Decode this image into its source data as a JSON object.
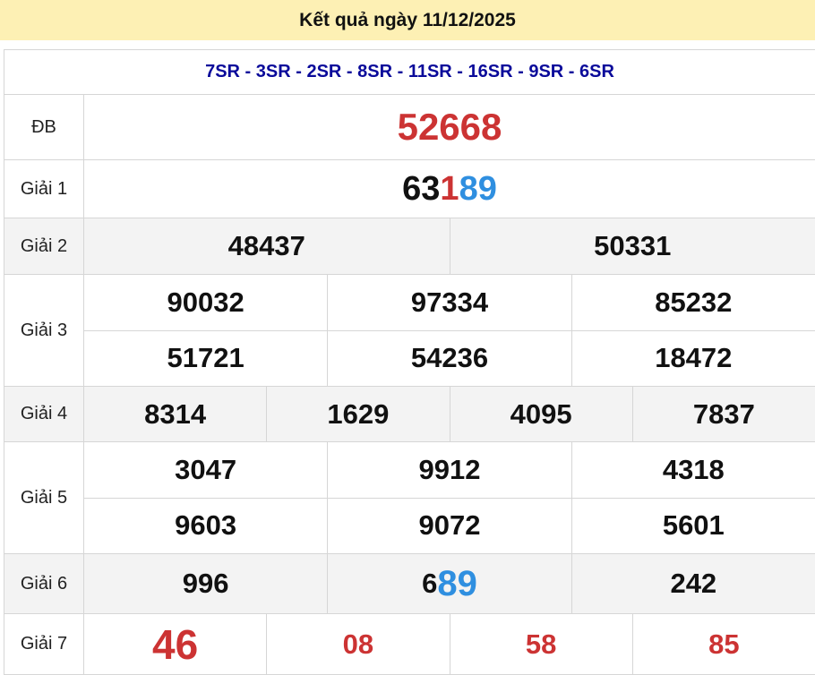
{
  "title": "Kết quả ngày 11/12/2025",
  "codes": "7SR - 3SR - 2SR - 8SR - 11SR - 16SR - 9SR - 6SR",
  "colors": {
    "red": "#cc3333",
    "blue": "#2f8fe0",
    "header_bg": "#fdf0b4",
    "codes": "#0a0a9a"
  },
  "prizes": [
    {
      "label": "ĐB",
      "size": 42,
      "rows": [
        [
          [
            {
              "t": "52668",
              "c": "red"
            }
          ]
        ]
      ]
    },
    {
      "label": "Giải 1",
      "size": 38,
      "rows": [
        [
          [
            {
              "t": "63",
              "c": "blk"
            },
            {
              "t": "1",
              "c": "red"
            },
            {
              "t": "89",
              "c": "blue"
            }
          ]
        ]
      ]
    },
    {
      "label": "Giải 2",
      "alt": true,
      "rows": [
        [
          [
            {
              "t": "48437"
            }
          ],
          [
            {
              "t": "50331"
            }
          ]
        ]
      ]
    },
    {
      "label": "Giải 3",
      "rows": [
        [
          [
            {
              "t": "90032"
            }
          ],
          [
            {
              "t": "97334"
            }
          ],
          [
            {
              "t": "85232"
            }
          ]
        ],
        [
          [
            {
              "t": "51721"
            }
          ],
          [
            {
              "t": "54236"
            }
          ],
          [
            {
              "t": "18472"
            }
          ]
        ]
      ]
    },
    {
      "label": "Giải 4",
      "alt": true,
      "rows": [
        [
          [
            {
              "t": "8314"
            }
          ],
          [
            {
              "t": "1629"
            }
          ],
          [
            {
              "t": "4095"
            }
          ],
          [
            {
              "t": "7837"
            }
          ]
        ]
      ]
    },
    {
      "label": "Giải 5",
      "rows": [
        [
          [
            {
              "t": "3047"
            }
          ],
          [
            {
              "t": "9912"
            }
          ],
          [
            {
              "t": "4318"
            }
          ]
        ],
        [
          [
            {
              "t": "9603"
            }
          ],
          [
            {
              "t": "9072"
            }
          ],
          [
            {
              "t": "5601"
            }
          ]
        ]
      ]
    },
    {
      "label": "Giải 6",
      "alt": true,
      "rows": [
        [
          [
            {
              "t": "996"
            }
          ],
          [
            {
              "t": "6",
              "c": "blk"
            },
            {
              "t": "89",
              "c": "blue",
              "big": true
            }
          ],
          [
            {
              "t": "242"
            }
          ]
        ]
      ]
    },
    {
      "label": "Giải 7",
      "rows": [
        [
          [
            {
              "t": "46",
              "c": "red",
              "big": true
            }
          ],
          [
            {
              "t": "08",
              "c": "red"
            }
          ],
          [
            {
              "t": "58",
              "c": "red"
            }
          ],
          [
            {
              "t": "85",
              "c": "red"
            }
          ]
        ]
      ]
    }
  ]
}
